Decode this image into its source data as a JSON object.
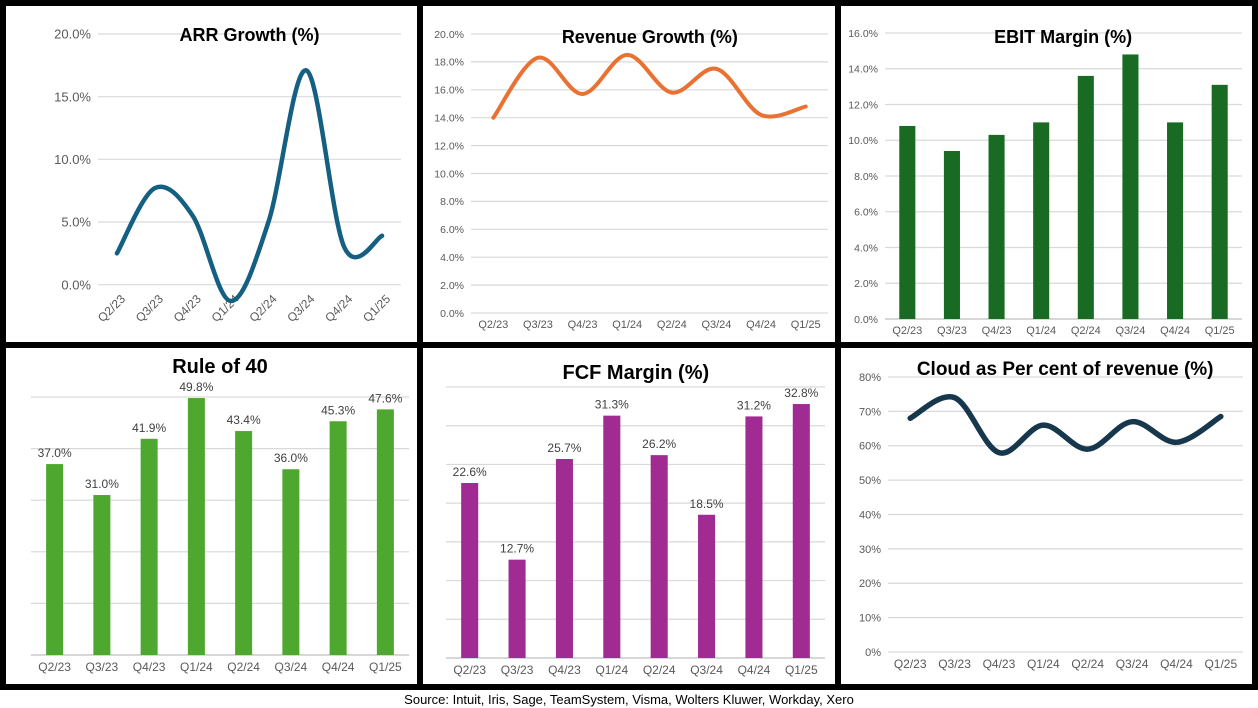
{
  "source_line": "Source: Intuit, Iris, Sage, TeamSystem, Visma, Wolters Kluwer, Workday, Xero",
  "categories": [
    "Q2/23",
    "Q3/23",
    "Q4/23",
    "Q1/24",
    "Q2/24",
    "Q3/24",
    "Q4/24",
    "Q1/25"
  ],
  "chart_data": [
    {
      "type": "line",
      "title": "ARR Growth (%)",
      "categories": [
        "Q2/23",
        "Q3/23",
        "Q4/23",
        "Q1/24",
        "Q2/24",
        "Q3/24",
        "Q4/24",
        "Q1/25"
      ],
      "values": [
        2.5,
        7.7,
        5.5,
        -1.3,
        5.0,
        17.1,
        3.0,
        3.9
      ],
      "color": "#156082",
      "ylim": [
        -2.5,
        20
      ],
      "grid": true,
      "legend": "none",
      "x_labels_rotated": true,
      "yticks": [
        {
          "v": 0,
          "label": "0.0%"
        },
        {
          "v": 5,
          "label": "5.0%"
        },
        {
          "v": 10,
          "label": "10.0%"
        },
        {
          "v": 15,
          "label": "15.0%"
        },
        {
          "v": 20,
          "label": "20.0%"
        }
      ]
    },
    {
      "type": "line",
      "title": "Revenue Growth (%)",
      "categories": [
        "Q2/23",
        "Q3/23",
        "Q4/23",
        "Q1/24",
        "Q2/24",
        "Q3/24",
        "Q4/24",
        "Q1/25"
      ],
      "values": [
        14.0,
        18.3,
        15.7,
        18.5,
        15.8,
        17.5,
        14.2,
        14.8
      ],
      "color": "#E97132",
      "ylim": [
        0,
        20
      ],
      "grid": true,
      "legend": "none",
      "x_labels_rotated": false,
      "yticks": [
        {
          "v": 0,
          "label": "0.0%"
        },
        {
          "v": 2,
          "label": "2.0%"
        },
        {
          "v": 4,
          "label": "4.0%"
        },
        {
          "v": 6,
          "label": "6.0%"
        },
        {
          "v": 8,
          "label": "8.0%"
        },
        {
          "v": 10,
          "label": "10.0%"
        },
        {
          "v": 12,
          "label": "12.0%"
        },
        {
          "v": 14,
          "label": "14.0%"
        },
        {
          "v": 16,
          "label": "16.0%"
        },
        {
          "v": 18,
          "label": "18.0%"
        },
        {
          "v": 20,
          "label": "20.0%"
        }
      ]
    },
    {
      "type": "bar",
      "title": "EBIT Margin (%)",
      "categories": [
        "Q2/23",
        "Q3/23",
        "Q4/23",
        "Q1/24",
        "Q2/24",
        "Q3/24",
        "Q4/24",
        "Q1/25"
      ],
      "values": [
        10.8,
        9.4,
        10.3,
        11.0,
        13.6,
        14.8,
        11.0,
        13.1
      ],
      "color": "#196B24",
      "ylim": [
        0,
        16
      ],
      "grid": true,
      "legend": "none",
      "x_labels_rotated": false,
      "yticks": [
        {
          "v": 0,
          "label": "0.0%"
        },
        {
          "v": 2,
          "label": "2.0%"
        },
        {
          "v": 4,
          "label": "4.0%"
        },
        {
          "v": 6,
          "label": "6.0%"
        },
        {
          "v": 8,
          "label": "8.0%"
        },
        {
          "v": 10,
          "label": "10.0%"
        },
        {
          "v": 12,
          "label": "12.0%"
        },
        {
          "v": 14,
          "label": "14.0%"
        },
        {
          "v": 16,
          "label": "16.0%"
        }
      ]
    },
    {
      "type": "bar",
      "title": "Rule of 40",
      "categories": [
        "Q2/23",
        "Q3/23",
        "Q4/23",
        "Q1/24",
        "Q2/24",
        "Q3/24",
        "Q4/24",
        "Q1/25"
      ],
      "values": [
        37.0,
        31.0,
        41.9,
        49.8,
        43.4,
        36.0,
        45.3,
        47.6
      ],
      "data_labels": [
        "37.0%",
        "31.0%",
        "41.9%",
        "49.8%",
        "43.4%",
        "36.0%",
        "45.3%",
        "47.6%"
      ],
      "color": "#4EA72E",
      "ylim": [
        0,
        50
      ],
      "grid": true,
      "legend": "none",
      "x_labels_rotated": false,
      "yticks": [
        {
          "v": 0
        },
        {
          "v": 10
        },
        {
          "v": 20
        },
        {
          "v": 30
        },
        {
          "v": 40
        },
        {
          "v": 50
        }
      ]
    },
    {
      "type": "bar",
      "title": "FCF Margin (%)",
      "categories": [
        "Q2/23",
        "Q3/23",
        "Q4/23",
        "Q1/24",
        "Q2/24",
        "Q3/24",
        "Q4/24",
        "Q1/25"
      ],
      "values": [
        22.6,
        12.7,
        25.7,
        31.3,
        26.2,
        18.5,
        31.2,
        32.8
      ],
      "data_labels": [
        "22.6%",
        "12.7%",
        "25.7%",
        "31.3%",
        "26.2%",
        "18.5%",
        "31.2%",
        "32.8%"
      ],
      "color": "#A02B93",
      "ylim": [
        0,
        35
      ],
      "grid": true,
      "legend": "none",
      "x_labels_rotated": false,
      "yticks": [
        {
          "v": 0
        },
        {
          "v": 5
        },
        {
          "v": 10
        },
        {
          "v": 15
        },
        {
          "v": 20
        },
        {
          "v": 25
        },
        {
          "v": 30
        },
        {
          "v": 35
        }
      ]
    },
    {
      "type": "line",
      "title": "Cloud as Per cent of revenue (%)",
      "categories": [
        "Q2/23",
        "Q3/23",
        "Q4/23",
        "Q1/24",
        "Q2/24",
        "Q3/24",
        "Q4/24",
        "Q1/25"
      ],
      "values": [
        68,
        74,
        58,
        66,
        59,
        67,
        61,
        68.5
      ],
      "color": "#17384C",
      "ylim": [
        0,
        80
      ],
      "grid": true,
      "legend": "none",
      "x_labels_rotated": false,
      "yticks": [
        {
          "v": 0,
          "label": "0%"
        },
        {
          "v": 10,
          "label": "10%"
        },
        {
          "v": 20,
          "label": "20%"
        },
        {
          "v": 30,
          "label": "30%"
        },
        {
          "v": 40,
          "label": "40%"
        },
        {
          "v": 50,
          "label": "50%"
        },
        {
          "v": 60,
          "label": "60%"
        },
        {
          "v": 70,
          "label": "70%"
        },
        {
          "v": 80,
          "label": "80%"
        }
      ]
    }
  ]
}
